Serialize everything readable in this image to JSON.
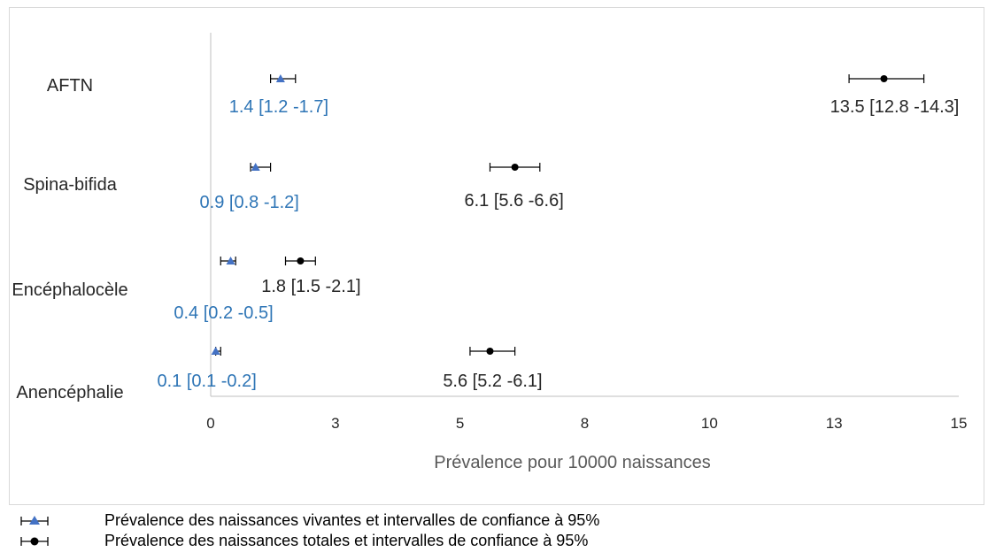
{
  "chart_data": {
    "type": "scatter",
    "categories": [
      "AFTN",
      "Spina-bifida",
      "Encéphalocèle",
      "Anencéphalie"
    ],
    "xlabel": "Prévalence pour 10000 naissances",
    "ylabel": "",
    "xlim": [
      0,
      15
    ],
    "x_ticks": [
      0,
      2.5,
      5,
      7.5,
      10,
      12.5,
      15
    ],
    "x_tick_labels": [
      "0",
      "3",
      "5",
      "8",
      "10",
      "13",
      "15"
    ],
    "grid": false,
    "series": [
      {
        "name": "Prévalence des naissances vivantes et intervalles de confiance à 95%",
        "marker": "triangle",
        "color": "#4472c4",
        "label_color": "#2e75b6",
        "points": [
          {
            "category": "AFTN",
            "x": 1.4,
            "ci": [
              1.2,
              1.7
            ],
            "label": "1.4 [1.2 -1.7]"
          },
          {
            "category": "Spina-bifida",
            "x": 0.9,
            "ci": [
              0.8,
              1.2
            ],
            "label": "0.9 [0.8 -1.2]"
          },
          {
            "category": "Encéphalocèle",
            "x": 0.4,
            "ci": [
              0.2,
              0.5
            ],
            "label": "0.4 [0.2 -0.5]"
          },
          {
            "category": "Anencéphalie",
            "x": 0.1,
            "ci": [
              0.1,
              0.2
            ],
            "label": "0.1 [0.1 -0.2]"
          }
        ]
      },
      {
        "name": "Prévalence des naissances totales et intervalles de confiance à 95%",
        "marker": "circle",
        "color": "#000000",
        "label_color": "#262626",
        "points": [
          {
            "category": "AFTN",
            "x": 13.5,
            "ci": [
              12.8,
              14.3
            ],
            "label": "13.5 [12.8 -14.3]"
          },
          {
            "category": "Spina-bifida",
            "x": 6.1,
            "ci": [
              5.6,
              6.6
            ],
            "label": "6.1 [5.6 -6.6]"
          },
          {
            "category": "Encéphalocèle",
            "x": 1.8,
            "ci": [
              1.5,
              2.1
            ],
            "label": "1.8 [1.5 -2.1]"
          },
          {
            "category": "Anencéphalie",
            "x": 5.6,
            "ci": [
              5.2,
              6.1
            ],
            "label": "5.6 [5.2 -6.1]"
          }
        ]
      }
    ]
  }
}
